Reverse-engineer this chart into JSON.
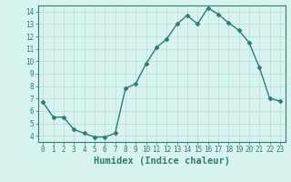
{
  "x": [
    0,
    1,
    2,
    3,
    4,
    5,
    6,
    7,
    8,
    9,
    10,
    11,
    12,
    13,
    14,
    15,
    16,
    17,
    18,
    19,
    20,
    21,
    22,
    23
  ],
  "y": [
    6.7,
    5.5,
    5.5,
    4.5,
    4.2,
    3.9,
    3.9,
    4.2,
    7.8,
    8.2,
    9.8,
    11.1,
    11.8,
    13.0,
    13.7,
    13.0,
    14.3,
    13.8,
    13.1,
    12.5,
    11.5,
    9.5,
    7.0,
    6.8
  ],
  "line_color": "#2e7d6e",
  "marker": "D",
  "marker_size": 2.5,
  "bg_color": "#d8f4f0",
  "grid_color": "#b8dcd8",
  "xlabel": "Humidex (Indice chaleur)",
  "xlim": [
    -0.5,
    23.5
  ],
  "ylim": [
    3.5,
    14.5
  ],
  "yticks": [
    4,
    5,
    6,
    7,
    8,
    9,
    10,
    11,
    12,
    13,
    14
  ],
  "xticks": [
    0,
    1,
    2,
    3,
    4,
    5,
    6,
    7,
    8,
    9,
    10,
    11,
    12,
    13,
    14,
    15,
    16,
    17,
    18,
    19,
    20,
    21,
    22,
    23
  ],
  "tick_fontsize": 5.5,
  "xlabel_fontsize": 7.5,
  "line_width": 1.0,
  "spine_color": "#2e7d6e",
  "tick_color": "#2e7d6e",
  "label_color": "#2e7d6e"
}
